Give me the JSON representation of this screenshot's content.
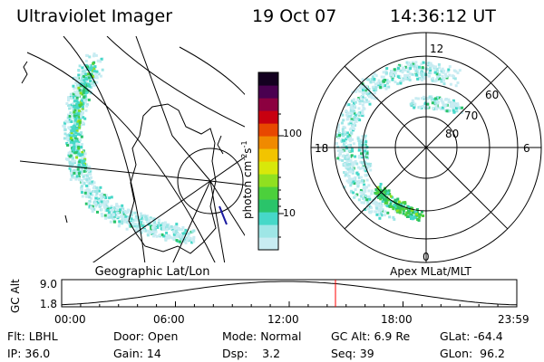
{
  "header": {
    "instrument": "Ultraviolet Imager",
    "date": "19 Oct 07",
    "time": "14:36:12 UT"
  },
  "left_panel": {
    "caption": "Geographic Lat/Lon"
  },
  "right_panel": {
    "caption": "Apex MLat/MLT",
    "mlt_labels": {
      "top": "12",
      "right": "6",
      "bottom": "0",
      "left": "18"
    },
    "lat_labels": [
      "60",
      "70",
      "80"
    ]
  },
  "colorbar": {
    "unit_label": "photon cm",
    "unit_sup1": "-2",
    "unit_mid": "s",
    "unit_sup2": "-1",
    "ticks": [
      "100",
      "10"
    ]
  },
  "altitude_plot": {
    "y_label": "GC Alt",
    "y_ticks": [
      "9.0",
      "1.8"
    ],
    "x_ticks": [
      "00:00",
      "06:00",
      "12:00",
      "18:00",
      "23:59"
    ],
    "marker_color": "#ff0000"
  },
  "status": {
    "row1": [
      "Flt: LBHL",
      "Door: Open",
      "Mode: Normal",
      "GC Alt: 6.9 Re",
      "GLat: -64.4"
    ],
    "row2": [
      "IP: 36.0",
      "Gain: 14",
      "Dsp:    3.2",
      "Seq: 39",
      "GLon:  96.2"
    ]
  },
  "colors": {
    "scale": [
      "#c8ecf2",
      "#9ee6e6",
      "#46d8c8",
      "#2ac46a",
      "#4cd03c",
      "#90e020",
      "#d8e80a",
      "#f2c400",
      "#f08a00",
      "#e84800",
      "#c80010",
      "#8c0040",
      "#4a0050",
      "#140020"
    ]
  }
}
